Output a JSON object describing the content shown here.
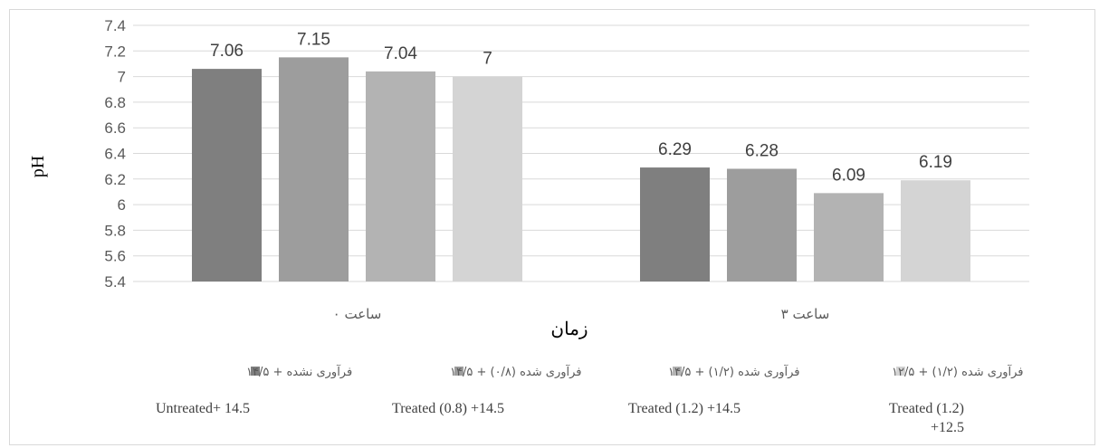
{
  "chart_data": {
    "type": "bar",
    "categories": [
      "ساعت ۰",
      "ساعت ۳"
    ],
    "series": [
      {
        "name": "فرآوری نشده + ۱۴/۵",
        "name_en": "Untreated+ 14.5",
        "color": "#7f7f7f",
        "values": [
          7.06,
          6.29
        ]
      },
      {
        "name": "فرآوری شده (۰/۸) + ۱۴/۵",
        "name_en": "Treated (0.8)  +14.5",
        "color": "#9d9d9d",
        "values": [
          7.15,
          6.28
        ]
      },
      {
        "name": "فرآوری شده (۱/۲) + ۱۴/۵",
        "name_en": "Treated (1.2)  +14.5",
        "color": "#b3b3b3",
        "values": [
          7.04,
          6.09
        ]
      },
      {
        "name": "فرآوری شده (۱/۲) + ۱۲/۵",
        "name_en": "Treated (1.2) +12.5",
        "color": "#d4d4d4",
        "values": [
          7,
          6.19
        ]
      }
    ],
    "data_labels": [
      [
        "7.06",
        "6.29"
      ],
      [
        "7.15",
        "6.28"
      ],
      [
        "7.04",
        "6.09"
      ],
      [
        "7",
        "6.19"
      ]
    ],
    "y_ticks": [
      "5.4",
      "5.6",
      "5.8",
      "6",
      "6.2",
      "6.4",
      "6.6",
      "6.8",
      "7",
      "7.2",
      "7.4"
    ],
    "ylim": [
      5.4,
      7.4
    ],
    "ylabel": "pH",
    "xlabel": "زمان",
    "grid": true,
    "legend_position": "bottom"
  }
}
